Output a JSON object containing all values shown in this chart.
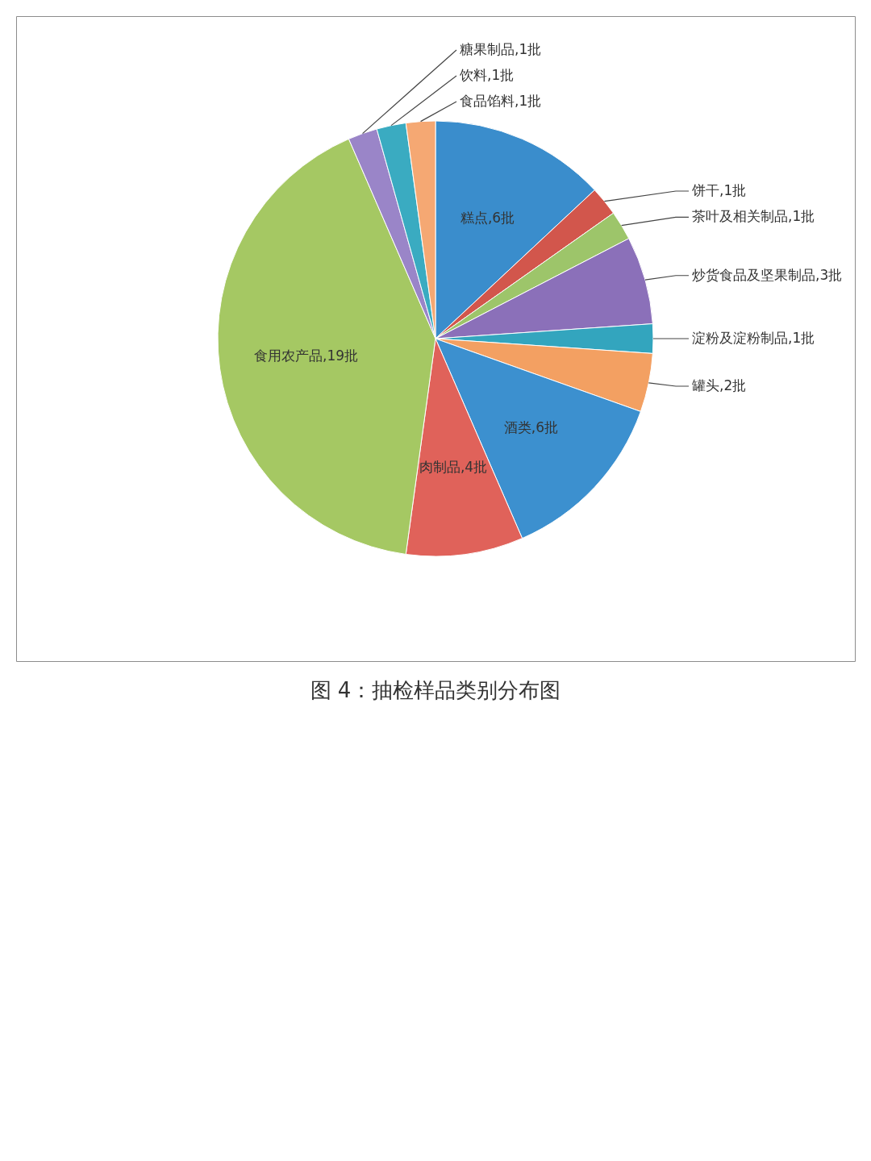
{
  "chart_data": {
    "type": "pie",
    "title": "图 4：抽检样品类别分布图",
    "categories": [
      "糕点",
      "饼干",
      "茶叶及相关制品",
      "炒货食品及坚果制品",
      "淀粉及淀粉制品",
      "罐头",
      "酒类",
      "肉制品",
      "食用农产品",
      "糖果制品",
      "饮料",
      "食品馅料"
    ],
    "values": [
      6,
      1,
      1,
      3,
      1,
      2,
      6,
      4,
      19,
      1,
      1,
      1
    ],
    "value_labels": [
      "6批",
      "1批",
      "1批",
      "3批",
      "1批",
      "2批",
      "6批",
      "4批",
      "19批",
      "1批",
      "1批",
      "1批"
    ],
    "colors": [
      "#3a8dcc",
      "#d2564c",
      "#9dc56a",
      "#8b70b9",
      "#33a5be",
      "#f3a062",
      "#3c90cf",
      "#e0625a",
      "#a5c863",
      "#9a85c8",
      "#3aabc1",
      "#f5a873"
    ]
  }
}
